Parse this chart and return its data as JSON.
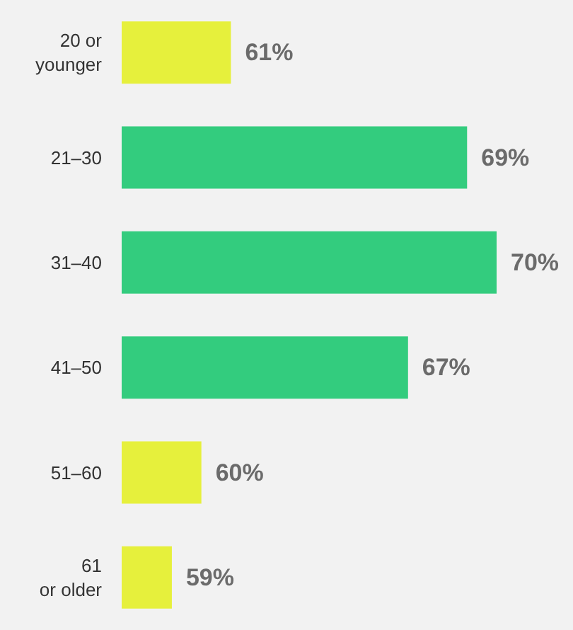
{
  "chart_data": {
    "type": "bar",
    "orientation": "horizontal",
    "categories": [
      "20 or\nyounger",
      "21–30",
      "31–40",
      "41–50",
      "51–60",
      "61\nor older"
    ],
    "values": [
      61,
      69,
      70,
      67,
      60,
      59
    ],
    "value_labels": [
      "61%",
      "69%",
      "70%",
      "67%",
      "60%",
      "59%"
    ],
    "colors": [
      "#e6f03c",
      "#33cc7e",
      "#33cc7e",
      "#33cc7e",
      "#e6f03c",
      "#e6f03c"
    ],
    "xlim": [
      57.3,
      70
    ],
    "grid": false
  }
}
